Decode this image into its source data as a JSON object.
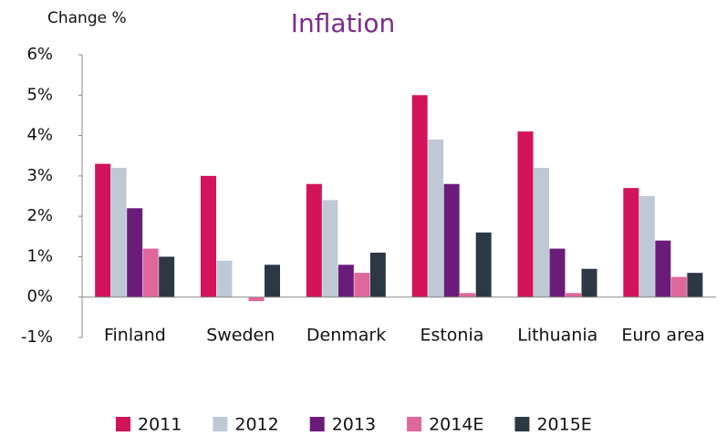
{
  "chart_data": {
    "type": "bar",
    "title": "Inflation",
    "y_axis_label": "Change %",
    "categories": [
      "Finland",
      "Sweden",
      "Denmark",
      "Estonia",
      "Lithuania",
      "Euro area"
    ],
    "series": [
      {
        "name": "2011",
        "color": "#d3135a",
        "values": [
          3.3,
          3.0,
          2.8,
          5.0,
          4.1,
          2.7
        ]
      },
      {
        "name": "2012",
        "color": "#bec9d5",
        "values": [
          3.2,
          0.9,
          2.4,
          3.9,
          3.2,
          2.5
        ]
      },
      {
        "name": "2013",
        "color": "#6b1c7b",
        "values": [
          2.2,
          0,
          0.8,
          2.8,
          1.2,
          1.4
        ]
      },
      {
        "name": "2014E",
        "color": "#e0679b",
        "values": [
          1.2,
          -0.1,
          0.6,
          0.1,
          0.1,
          0.5
        ]
      },
      {
        "name": "2015E",
        "color": "#2c3945",
        "values": [
          1.0,
          0.8,
          1.1,
          1.6,
          0.7,
          0.6
        ]
      }
    ],
    "ylim": [
      -1,
      6
    ],
    "yticks": [
      {
        "value": -1,
        "label": "-1%"
      },
      {
        "value": 0,
        "label": "0%"
      },
      {
        "value": 1,
        "label": "1%"
      },
      {
        "value": 2,
        "label": "2%"
      },
      {
        "value": 3,
        "label": "3%"
      },
      {
        "value": 4,
        "label": "4%"
      },
      {
        "value": 5,
        "label": "5%"
      },
      {
        "value": 6,
        "label": "6%"
      }
    ],
    "legend": "bottom"
  }
}
